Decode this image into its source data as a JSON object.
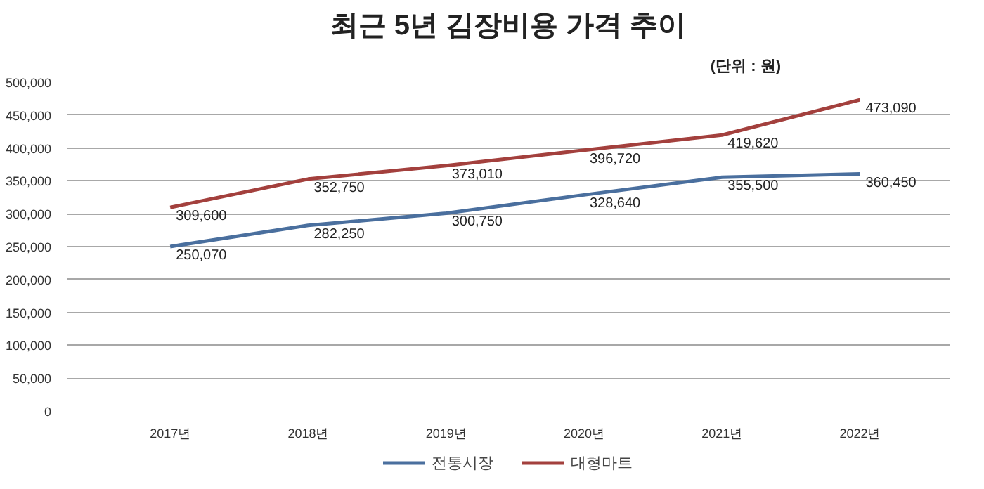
{
  "chart_data": {
    "type": "line",
    "title": "최근 5년 김장비용 가격 추이",
    "subtitle": "(단위 : 원)",
    "categories": [
      "2017년",
      "2018년",
      "2019년",
      "2020년",
      "2021년",
      "2022년"
    ],
    "series": [
      {
        "name": "전통시장",
        "color": "#4a6f9e",
        "values": [
          250070,
          282250,
          300750,
          328640,
          355500,
          360450
        ],
        "value_labels": [
          "250,070",
          "282,250",
          "300,750",
          "328,640",
          "355,500",
          "360,450"
        ]
      },
      {
        "name": "대형마트",
        "color": "#a3403d",
        "values": [
          309600,
          352750,
          373010,
          396720,
          419620,
          473090
        ],
        "value_labels": [
          "309,600",
          "352,750",
          "373,010",
          "396,720",
          "419,620",
          "473,090"
        ]
      }
    ],
    "ylim": [
      0,
      500000
    ],
    "yticks": [
      {
        "value": 0,
        "label": "0"
      },
      {
        "value": 50000,
        "label": "50,000"
      },
      {
        "value": 100000,
        "label": "100,000"
      },
      {
        "value": 150000,
        "label": "150,000"
      },
      {
        "value": 200000,
        "label": "200,000"
      },
      {
        "value": 250000,
        "label": "250,000"
      },
      {
        "value": 300000,
        "label": "300,000"
      },
      {
        "value": 350000,
        "label": "350,000"
      },
      {
        "value": 400000,
        "label": "400,000"
      },
      {
        "value": 450000,
        "label": "450,000"
      },
      {
        "value": 500000,
        "label": "500,000"
      }
    ],
    "grid": "y",
    "legend": "bottom",
    "marker": "none",
    "line_style": "solid"
  }
}
